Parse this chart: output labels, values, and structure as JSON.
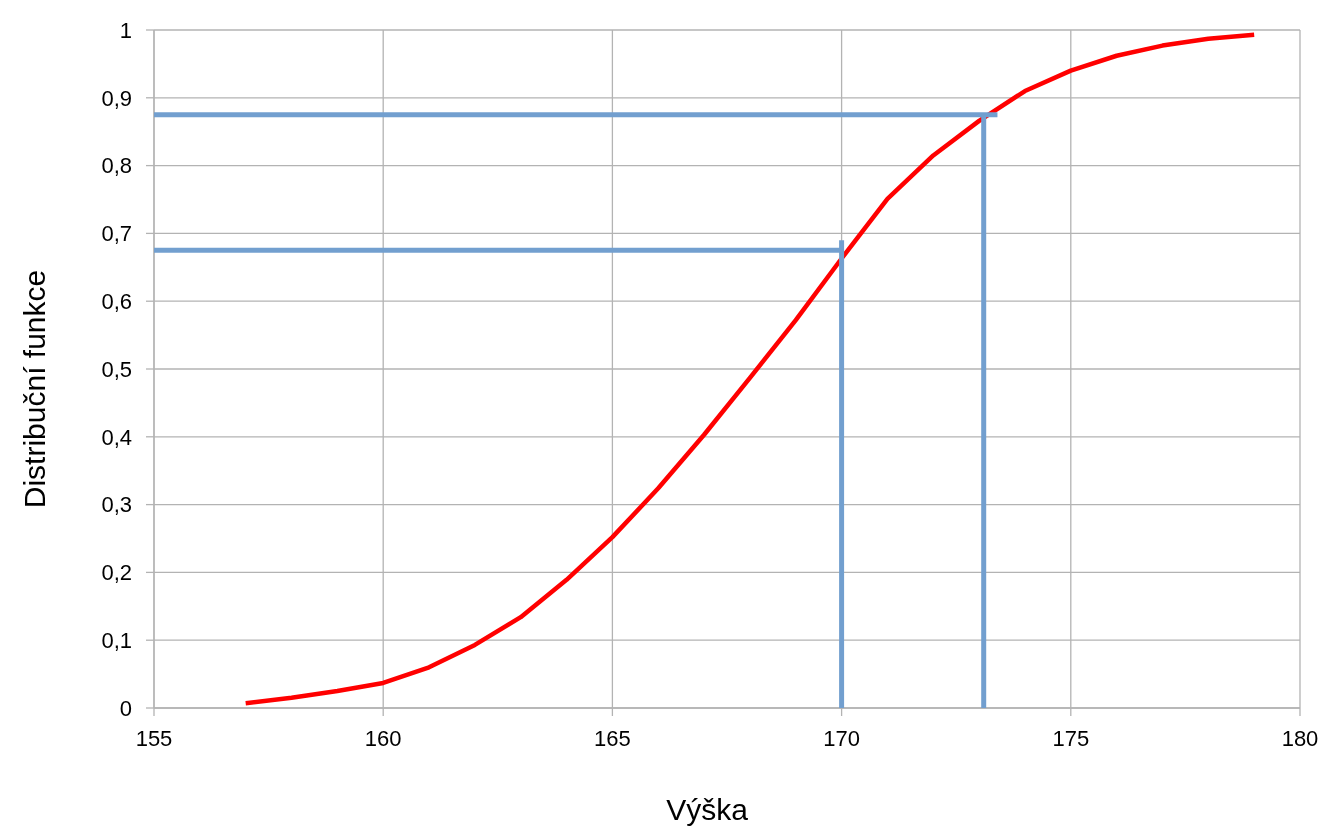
{
  "chart_data": {
    "type": "line",
    "xlabel": "Výška",
    "ylabel": "Distribuční funkce",
    "xlim": [
      155,
      180
    ],
    "xticks": [
      155,
      160,
      165,
      170,
      175,
      180
    ],
    "ylim": [
      0,
      1
    ],
    "yticks": [
      0,
      {
        "value": 0.1,
        "label": "0,1"
      },
      {
        "value": 0.2,
        "label": "0,2"
      },
      {
        "value": 0.3,
        "label": "0,3"
      },
      {
        "value": 0.4,
        "label": "0,4"
      },
      {
        "value": 0.5,
        "label": "0,5"
      },
      {
        "value": 0.6,
        "label": "0,6"
      },
      {
        "value": 0.7,
        "label": "0,7"
      },
      {
        "value": 0.8,
        "label": "0,8"
      },
      {
        "value": 0.9,
        "label": "0,9"
      },
      1
    ],
    "grid": true,
    "marker": "none",
    "line_style": "solid",
    "series": [
      {
        "color": "#ff0000",
        "x": [
          157,
          158,
          159,
          160,
          161,
          162,
          163,
          164,
          165,
          166,
          167,
          168,
          169,
          170,
          171,
          172,
          173,
          174,
          175,
          176,
          177,
          178,
          179
        ],
        "values": [
          0.007,
          0.015,
          0.025,
          0.037,
          0.06,
          0.093,
          0.134,
          0.189,
          0.252,
          0.324,
          0.403,
          0.487,
          0.572,
          0.663,
          0.751,
          0.815,
          0.866,
          0.91,
          0.94,
          0.962,
          0.977,
          0.987,
          0.993
        ]
      },
      {
        "color": "#729fcf",
        "x": [
          155,
          173.4
        ],
        "values": [
          0.875,
          0.875
        ]
      },
      {
        "color": "#729fcf",
        "x": [
          173.1,
          173.1
        ],
        "values": [
          0,
          0.875
        ]
      },
      {
        "color": "#729fcf",
        "x": [
          155,
          170
        ],
        "values": [
          0.675,
          0.675
        ]
      },
      {
        "color": "#729fcf",
        "x": [
          170,
          170
        ],
        "values": [
          0,
          0.69
        ]
      }
    ]
  }
}
